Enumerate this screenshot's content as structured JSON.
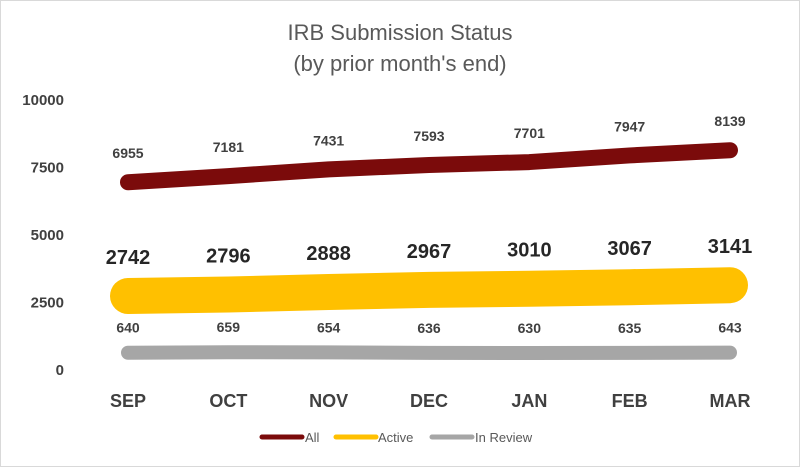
{
  "chart_data": {
    "type": "line",
    "title": "IRB Submission Status",
    "subtitle": "(by prior month's end)",
    "categories": [
      "SEP",
      "OCT",
      "NOV",
      "DEC",
      "JAN",
      "FEB",
      "MAR"
    ],
    "yticks": [
      "0",
      "2500",
      "5000",
      "7500",
      "10000"
    ],
    "ylim": [
      0,
      10000
    ],
    "grid": false,
    "legend_position": "bottom",
    "series": [
      {
        "name": "All",
        "color": "#7b0b0b",
        "values": [
          6955,
          7181,
          7431,
          7593,
          7701,
          7947,
          8139
        ],
        "labels": [
          "6955",
          "7181",
          "7431",
          "7593",
          "7701",
          "7947",
          "8139"
        ]
      },
      {
        "name": "Active",
        "color": "#ffc000",
        "values": [
          2742,
          2796,
          2888,
          2967,
          3010,
          3067,
          3141
        ],
        "labels": [
          "2742",
          "2796",
          "2888",
          "2967",
          "3010",
          "3067",
          "3141"
        ]
      },
      {
        "name": "In Review",
        "color": "#a6a6a6",
        "values": [
          640,
          659,
          654,
          636,
          630,
          635,
          643
        ],
        "labels": [
          "640",
          "659",
          "654",
          "636",
          "630",
          "635",
          "643"
        ]
      }
    ]
  }
}
